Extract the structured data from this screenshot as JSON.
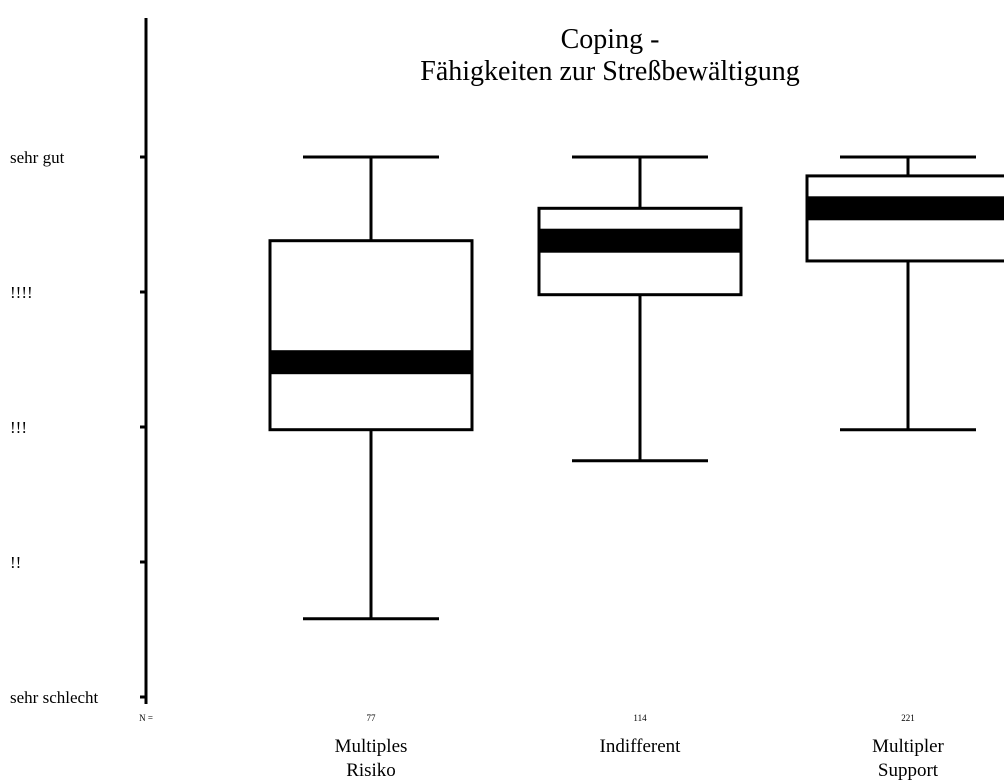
{
  "chart_data": {
    "type": "boxplot",
    "title_lines": [
      "Coping -",
      "Fähigkeiten zur Streßbewältigung"
    ],
    "y_tick_labels": [
      "sehr gut",
      "!!!!",
      "!!!",
      "!!",
      "sehr schlecht"
    ],
    "y_tick_values": [
      5,
      4,
      3,
      2,
      1
    ],
    "ylim": [
      1,
      5
    ],
    "n_label": "N =",
    "groups": [
      {
        "label_lines": [
          "Multiples",
          "Risiko"
        ],
        "n": "77",
        "whisker_low": 1.58,
        "q1": 2.98,
        "median": 3.48,
        "q3": 4.38,
        "whisker_high": 5.0
      },
      {
        "label_lines": [
          "Indifferent"
        ],
        "n": "114",
        "whisker_low": 2.75,
        "q1": 3.98,
        "median": 4.38,
        "q3": 4.62,
        "whisker_high": 5.0
      },
      {
        "label_lines": [
          "Multipler",
          "Support"
        ],
        "n": "221",
        "whisker_low": 2.98,
        "q1": 4.23,
        "median": 4.62,
        "q3": 4.86,
        "whisker_high": 5.0
      }
    ]
  }
}
